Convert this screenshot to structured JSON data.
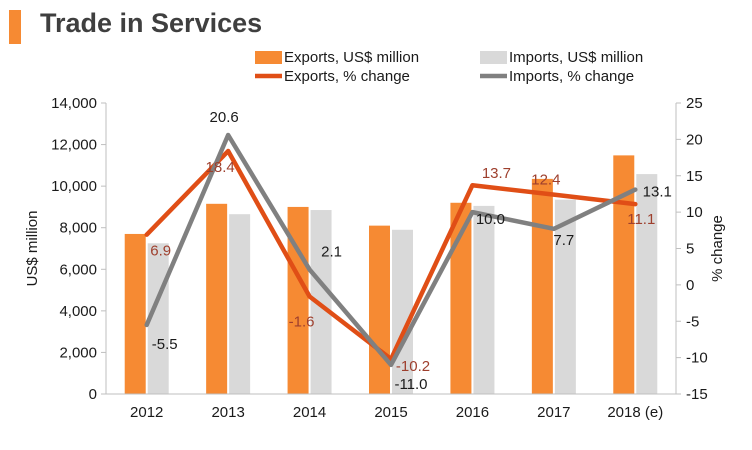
{
  "title": "Trade in Services",
  "colors": {
    "accent": "#f68a33",
    "exports_bar": "#f68a33",
    "imports_bar": "#d9d9d9",
    "exports_line": "#e04e16",
    "imports_line": "#808080",
    "exports_label": "#9e3f2d",
    "imports_label": "#1a1a1a"
  },
  "chart_data": {
    "type": "bar",
    "categories": [
      "2012",
      "2013",
      "2014",
      "2015",
      "2016",
      "2017",
      "2018 (e)"
    ],
    "ylabel": "US$ million",
    "y2label": "% change",
    "ylim": [
      0,
      14000
    ],
    "y2lim": [
      -15,
      25
    ],
    "yticks": [
      "0",
      "2,000",
      "4,000",
      "6,000",
      "8,000",
      "10,000",
      "12,000",
      "14,000"
    ],
    "y2ticks": [
      "-15",
      "-10",
      "-5",
      "0",
      "5",
      "10",
      "15",
      "20",
      "25"
    ],
    "legend_placement": "top",
    "series": [
      {
        "name": "Exports, US$ million",
        "type": "bar",
        "axis": "left",
        "values": [
          7700,
          9150,
          9000,
          8100,
          9200,
          10350,
          11480
        ]
      },
      {
        "name": "Imports, US$ million",
        "type": "bar",
        "axis": "left",
        "values": [
          7250,
          8650,
          8850,
          7900,
          9050,
          9350,
          10580
        ]
      },
      {
        "name": "Exports, % change",
        "type": "line",
        "axis": "right",
        "values": [
          6.9,
          18.4,
          -1.6,
          -10.2,
          13.7,
          12.4,
          11.1
        ],
        "labels": [
          "6.9",
          "18.4",
          "-1.6",
          "-10.2",
          "13.7",
          "12.4",
          "11.1"
        ]
      },
      {
        "name": "Imports, % change",
        "type": "line",
        "axis": "right",
        "values": [
          -5.5,
          20.6,
          2.1,
          -11.0,
          10.0,
          7.7,
          13.1
        ],
        "labels": [
          "-5.5",
          "20.6",
          "2.1",
          "-11.0",
          "10.0",
          "7.7",
          "13.1"
        ]
      }
    ]
  }
}
